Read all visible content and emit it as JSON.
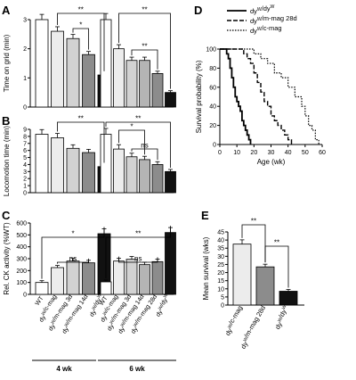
{
  "panel_letters": [
    "A",
    "B",
    "C",
    "D",
    "E"
  ],
  "group_labels": [
    "4 wk",
    "6 wk"
  ],
  "colors": {
    "bar_shades": [
      "#ffffff",
      "#ececec",
      "#d2d2d2",
      "#b4b4b4",
      "#8c8c8c",
      "#111111"
    ],
    "axis": "#000000"
  },
  "chart_data": [
    {
      "panel": "A",
      "type": "bar",
      "ylabel": "Time on grid (min)",
      "ylim": [
        0,
        3
      ],
      "yticks": [
        "0",
        "1",
        "2",
        "3"
      ],
      "groups": [
        {
          "name": "4 wk",
          "values": [
            3.0,
            2.6,
            2.35,
            1.8,
            1.1
          ]
        },
        {
          "name": "6 wk",
          "values": [
            3.0,
            2.0,
            1.6,
            1.6,
            1.15,
            0.5
          ]
        }
      ],
      "significance": [
        "**",
        "*",
        "**",
        "**"
      ]
    },
    {
      "panel": "B",
      "type": "bar",
      "ylabel": "Locomotion time (min)",
      "ylim": [
        0,
        9
      ],
      "yticks": [
        "0",
        "1",
        "2",
        "3",
        "4",
        "5",
        "6",
        "7",
        "8",
        "9"
      ],
      "groups": [
        {
          "name": "4 wk",
          "values": [
            8.3,
            7.8,
            6.3,
            5.7,
            3.7
          ]
        },
        {
          "name": "6 wk",
          "values": [
            8.3,
            6.2,
            5.1,
            4.7,
            4.0,
            3.0
          ]
        }
      ],
      "significance": [
        "**",
        "**",
        "*",
        "ns"
      ]
    },
    {
      "panel": "C",
      "type": "bar",
      "ylabel": "Rel. CK activity (%WT)",
      "ylim": [
        0,
        600
      ],
      "yticks": [
        "0",
        "100",
        "200",
        "300",
        "400",
        "500",
        "600"
      ],
      "categories_4wk": [
        "WT",
        "dyW/c-mag",
        "dyW/m-mag 3d",
        "dyW/m-mag 14d",
        "dyW/dyW"
      ],
      "categories_6wk": [
        "WT",
        "dyW/c-mag",
        "dyW/m-mag 3d",
        "dyW/m-mag 14d",
        "dyW/m-mag 28d",
        "dyW/dyW"
      ],
      "groups": [
        {
          "name": "4 wk",
          "values": [
            100,
            225,
            280,
            265,
            510
          ]
        },
        {
          "name": "6 wk",
          "values": [
            105,
            280,
            295,
            250,
            275,
            520
          ]
        }
      ],
      "significance": [
        "*",
        "ns",
        "**",
        "ns"
      ]
    },
    {
      "panel": "D",
      "type": "line",
      "xlabel": "Age (wk)",
      "ylabel": "Survival probability (%)",
      "xlim": [
        0,
        60
      ],
      "ylim": [
        0,
        100
      ],
      "xticks": [
        "0",
        "10",
        "20",
        "30",
        "40",
        "50",
        "60"
      ],
      "yticks": [
        "0",
        "20",
        "40",
        "60",
        "80",
        "100"
      ],
      "legend_position": "top-right",
      "series": [
        {
          "name": "dyW/dyW",
          "x": [
            0,
            3,
            4,
            5,
            6,
            7,
            8,
            9,
            10,
            11,
            12,
            13,
            14,
            15,
            16,
            17,
            18
          ],
          "y": [
            100,
            100,
            95,
            90,
            80,
            70,
            60,
            50,
            45,
            40,
            35,
            25,
            20,
            15,
            10,
            5,
            0
          ]
        },
        {
          "name": "dyW/m-mag 28d",
          "x": [
            0,
            12,
            14,
            16,
            18,
            20,
            22,
            24,
            26,
            28,
            30,
            32,
            34,
            36,
            38,
            40,
            42
          ],
          "y": [
            100,
            100,
            95,
            90,
            85,
            75,
            65,
            55,
            45,
            40,
            30,
            25,
            20,
            15,
            10,
            5,
            0
          ]
        },
        {
          "name": "dyW/c-mag",
          "x": [
            0,
            16,
            20,
            24,
            28,
            32,
            36,
            40,
            44,
            48,
            50,
            52,
            54,
            56,
            58
          ],
          "y": [
            100,
            100,
            95,
            90,
            85,
            75,
            70,
            60,
            50,
            40,
            30,
            20,
            15,
            5,
            0
          ]
        }
      ]
    },
    {
      "panel": "E",
      "type": "bar",
      "ylabel": "Mean survival (wks)",
      "ylim": [
        0,
        45
      ],
      "yticks": [
        "0",
        "5",
        "10",
        "15",
        "20",
        "25",
        "30",
        "35",
        "40",
        "45"
      ],
      "categories": [
        "dyW/c-mag",
        "dyW/m-mag 28d",
        "dyW/dyW"
      ],
      "values": [
        37.5,
        23.5,
        8.5
      ],
      "significance": [
        "**",
        "**"
      ]
    }
  ]
}
